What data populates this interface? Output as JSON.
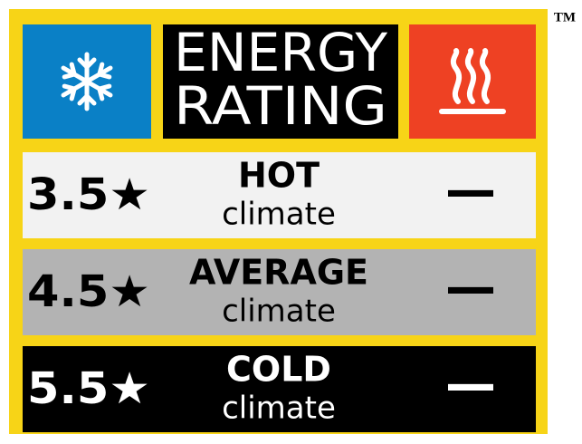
{
  "header": {
    "title": [
      "ENERGY",
      "RATING"
    ],
    "trademark": "TM"
  },
  "rows": [
    {
      "rating": "3.5★",
      "zone": "HOT",
      "label": "climate",
      "value": "—"
    },
    {
      "rating": "4.5★",
      "zone": "AVERAGE",
      "label": "climate",
      "value": "—"
    },
    {
      "rating": "5.5★",
      "zone": "COLD",
      "label": "climate",
      "value": "—"
    }
  ]
}
